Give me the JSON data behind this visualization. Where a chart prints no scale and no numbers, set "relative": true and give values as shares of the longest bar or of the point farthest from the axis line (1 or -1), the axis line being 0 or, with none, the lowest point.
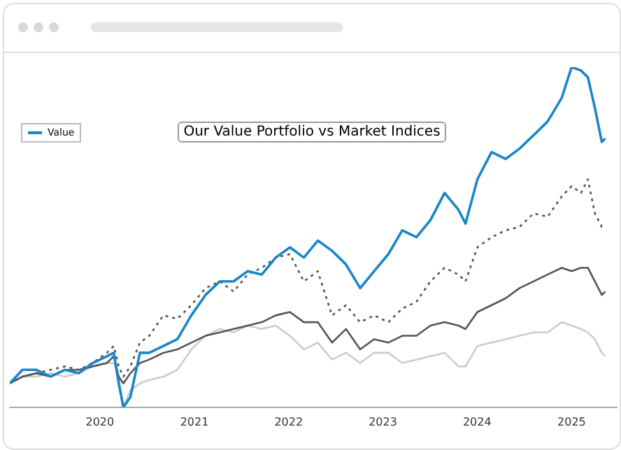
{
  "chart_data": {
    "type": "line",
    "title": "Our Value Portfolio vs Market Indices",
    "relative": true,
    "legend": "top left",
    "xlim": [
      "2019-01-17",
      "2025-06-25"
    ],
    "xticks": [
      "2020",
      "2021",
      "2022",
      "2023",
      "2024",
      "2025"
    ],
    "x": [
      "2019-01-17",
      "2019-03-07",
      "2019-04-30",
      "2019-06-24",
      "2019-08-18",
      "2019-10-11",
      "2019-12-04",
      "2020-01-28",
      "2020-02-24",
      "2020-03-14",
      "2020-04-01",
      "2020-04-28",
      "2020-06-04",
      "2020-07-10",
      "2020-09-03",
      "2020-10-27",
      "2020-12-20",
      "2021-02-13",
      "2021-04-09",
      "2021-06-02",
      "2021-07-26",
      "2021-09-19",
      "2021-11-12",
      "2022-01-06",
      "2022-03-01",
      "2022-04-24",
      "2022-06-18",
      "2022-08-11",
      "2022-10-05",
      "2022-11-28",
      "2023-01-22",
      "2023-03-17",
      "2023-05-11",
      "2023-07-04",
      "2023-08-28",
      "2023-10-21",
      "2023-11-17",
      "2024-01-02",
      "2024-02-26",
      "2024-04-20",
      "2024-06-13",
      "2024-08-07",
      "2024-09-30",
      "2024-11-24",
      "2025-01-01",
      "2025-02-06",
      "2025-03-05",
      "2025-04-01",
      "2025-04-28",
      "2025-05-11"
    ],
    "series": [
      {
        "name": "Value",
        "color": "#1a86c8",
        "line_style": "solid",
        "values": [
          0.07,
          0.11,
          0.11,
          0.09,
          0.11,
          0.1,
          0.13,
          0.15,
          0.16,
          0.07,
          0.0,
          0.03,
          0.16,
          0.16,
          0.18,
          0.2,
          0.27,
          0.33,
          0.37,
          0.37,
          0.4,
          0.39,
          0.44,
          0.47,
          0.44,
          0.49,
          0.46,
          0.42,
          0.35,
          0.4,
          0.45,
          0.52,
          0.5,
          0.55,
          0.63,
          0.58,
          0.54,
          0.67,
          0.75,
          0.73,
          0.76,
          0.8,
          0.84,
          0.91,
          1.0,
          0.99,
          0.97,
          0.88,
          0.78,
          0.79
        ]
      },
      {
        "color": "#555555",
        "line_style": "solid",
        "values": [
          0.07,
          0.09,
          0.1,
          0.09,
          0.11,
          0.11,
          0.12,
          0.13,
          0.15,
          0.09,
          0.07,
          0.1,
          0.13,
          0.14,
          0.16,
          0.17,
          0.19,
          0.21,
          0.22,
          0.23,
          0.24,
          0.25,
          0.27,
          0.28,
          0.25,
          0.25,
          0.19,
          0.23,
          0.17,
          0.2,
          0.19,
          0.21,
          0.21,
          0.24,
          0.25,
          0.24,
          0.23,
          0.28,
          0.3,
          0.32,
          0.35,
          0.37,
          0.39,
          0.41,
          0.4,
          0.41,
          0.41,
          0.37,
          0.33,
          0.34
        ]
      },
      {
        "color": "#555555",
        "line_style": "dotted",
        "values": [
          0.07,
          0.09,
          0.1,
          0.11,
          0.12,
          0.11,
          0.13,
          0.16,
          0.18,
          0.12,
          0.09,
          0.12,
          0.19,
          0.21,
          0.27,
          0.26,
          0.3,
          0.35,
          0.37,
          0.34,
          0.39,
          0.41,
          0.44,
          0.45,
          0.37,
          0.4,
          0.27,
          0.3,
          0.25,
          0.27,
          0.25,
          0.29,
          0.31,
          0.37,
          0.41,
          0.39,
          0.37,
          0.47,
          0.5,
          0.52,
          0.53,
          0.57,
          0.56,
          0.62,
          0.65,
          0.63,
          0.67,
          0.57,
          0.53,
          0.53
        ]
      },
      {
        "color": "#cccccc",
        "line_style": "solid",
        "values": [
          0.07,
          0.09,
          0.09,
          0.1,
          0.09,
          0.1,
          0.12,
          0.13,
          0.13,
          0.09,
          0.0,
          0.05,
          0.07,
          0.08,
          0.09,
          0.11,
          0.17,
          0.21,
          0.23,
          0.22,
          0.24,
          0.23,
          0.24,
          0.21,
          0.17,
          0.19,
          0.14,
          0.16,
          0.13,
          0.16,
          0.16,
          0.13,
          0.14,
          0.15,
          0.16,
          0.12,
          0.12,
          0.18,
          0.19,
          0.2,
          0.21,
          0.22,
          0.22,
          0.25,
          0.24,
          0.23,
          0.22,
          0.2,
          0.16,
          0.15
        ]
      }
    ]
  }
}
